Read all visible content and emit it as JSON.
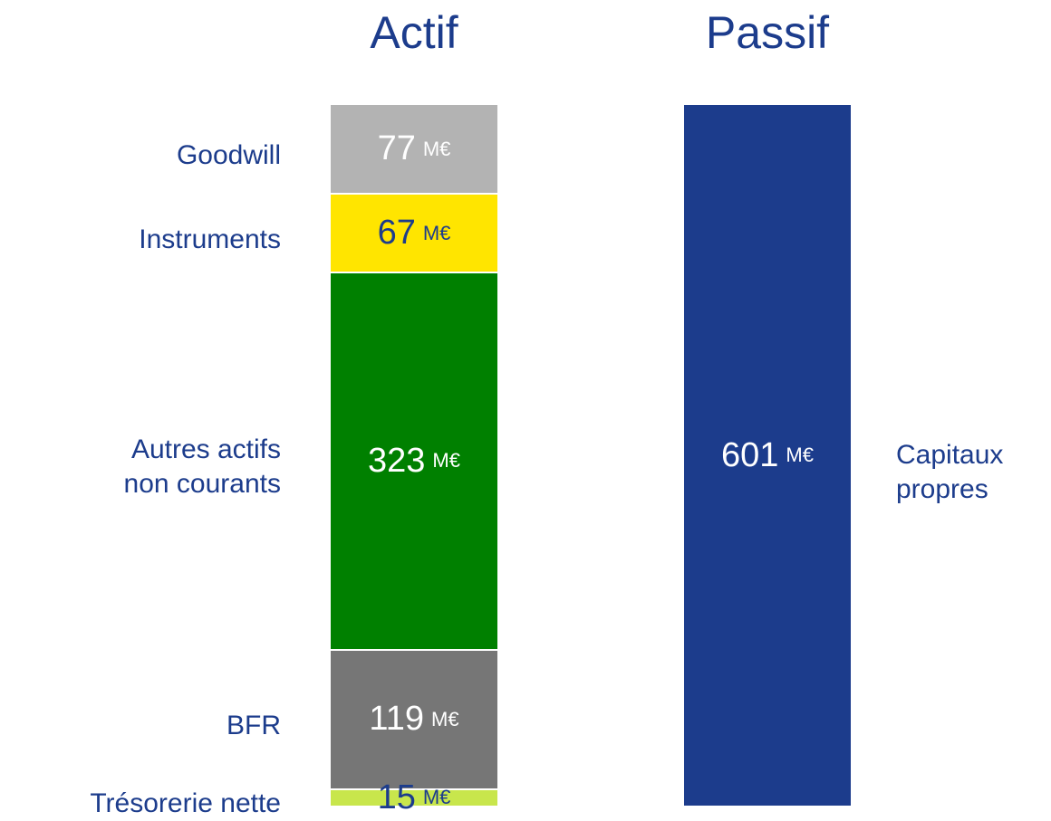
{
  "chart_data": {
    "type": "balance_sheet",
    "unit": "M€",
    "columns": [
      {
        "title": "Actif",
        "label_side": "left",
        "segments": [
          {
            "name": "Goodwill",
            "value": 77,
            "color": "#b3b3b3",
            "text_color": "#ffffff"
          },
          {
            "name": "Instruments",
            "value": 67,
            "color": "#ffe500",
            "text_color": "#1c3c8c"
          },
          {
            "name": "Autres actifs\nnon courants",
            "value": 323,
            "color": "#008000",
            "text_color": "#ffffff"
          },
          {
            "name": "BFR",
            "value": 119,
            "color": "#767676",
            "text_color": "#ffffff"
          },
          {
            "name": "Trésorerie nette",
            "value": 15,
            "color": "#c8e64c",
            "text_color": "#1c3c8c"
          }
        ]
      },
      {
        "title": "Passif",
        "label_side": "right",
        "segments": [
          {
            "name": "Capitaux\npropres",
            "value": 601,
            "color": "#1c3c8c",
            "text_color": "#ffffff"
          }
        ]
      }
    ]
  }
}
